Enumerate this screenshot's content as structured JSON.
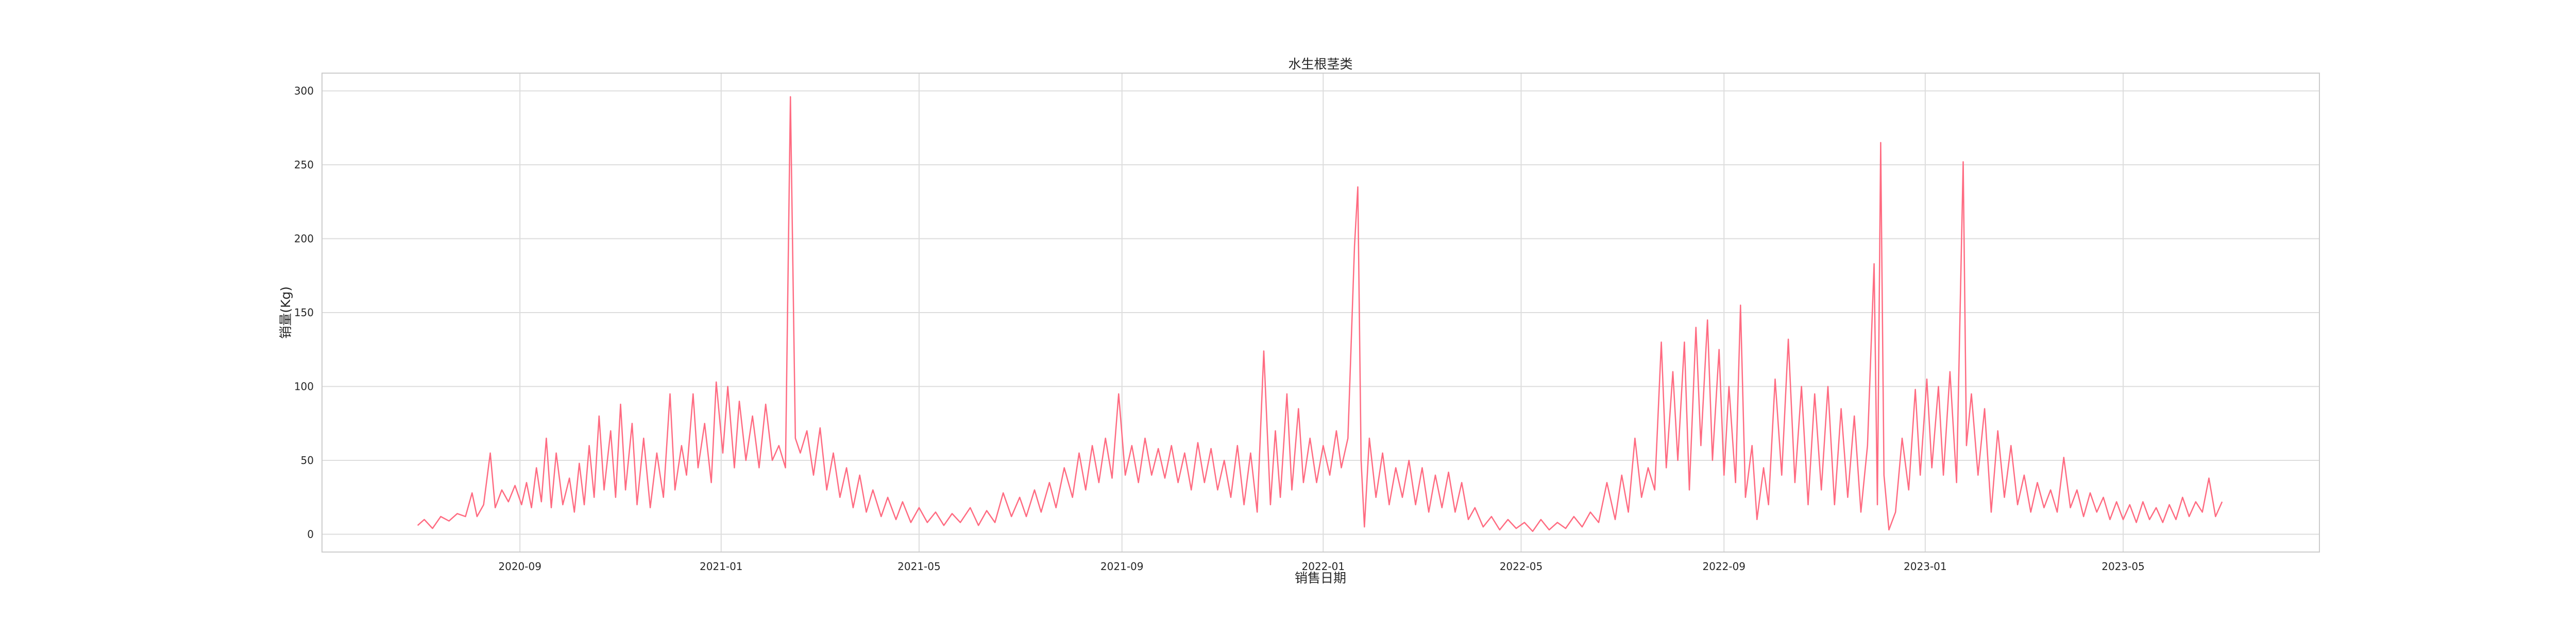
{
  "chart_data": {
    "type": "line",
    "title": "水生根茎类",
    "xlabel": "销售日期",
    "ylabel": "销量(Kg)",
    "xlim": [
      "2020-05-04",
      "2023-08-28"
    ],
    "ylim": [
      -12,
      312
    ],
    "grid": true,
    "legend": "none",
    "x_ticks": [
      "2020-09",
      "2021-01",
      "2021-05",
      "2021-09",
      "2022-01",
      "2022-05",
      "2022-09",
      "2023-01",
      "2023-05"
    ],
    "y_ticks": [
      0,
      50,
      100,
      150,
      200,
      250,
      300
    ],
    "series_color": "#ff6b81",
    "series": [
      {
        "points": [
          [
            "2020-07-01",
            6
          ],
          [
            "2020-07-05",
            10
          ],
          [
            "2020-07-10",
            4
          ],
          [
            "2020-07-15",
            12
          ],
          [
            "2020-07-20",
            9
          ],
          [
            "2020-07-25",
            14
          ],
          [
            "2020-07-30",
            12
          ],
          [
            "2020-08-03",
            28
          ],
          [
            "2020-08-06",
            12
          ],
          [
            "2020-08-10",
            20
          ],
          [
            "2020-08-14",
            55
          ],
          [
            "2020-08-17",
            18
          ],
          [
            "2020-08-21",
            30
          ],
          [
            "2020-08-25",
            22
          ],
          [
            "2020-08-29",
            33
          ],
          [
            "2020-09-02",
            20
          ],
          [
            "2020-09-05",
            35
          ],
          [
            "2020-09-08",
            18
          ],
          [
            "2020-09-11",
            45
          ],
          [
            "2020-09-14",
            22
          ],
          [
            "2020-09-17",
            65
          ],
          [
            "2020-09-20",
            18
          ],
          [
            "2020-09-23",
            55
          ],
          [
            "2020-09-27",
            20
          ],
          [
            "2020-10-01",
            38
          ],
          [
            "2020-10-04",
            15
          ],
          [
            "2020-10-07",
            48
          ],
          [
            "2020-10-10",
            20
          ],
          [
            "2020-10-13",
            60
          ],
          [
            "2020-10-16",
            25
          ],
          [
            "2020-10-19",
            80
          ],
          [
            "2020-10-22",
            30
          ],
          [
            "2020-10-26",
            70
          ],
          [
            "2020-10-29",
            25
          ],
          [
            "2020-11-01",
            88
          ],
          [
            "2020-11-04",
            30
          ],
          [
            "2020-11-08",
            75
          ],
          [
            "2020-11-11",
            20
          ],
          [
            "2020-11-15",
            65
          ],
          [
            "2020-11-19",
            18
          ],
          [
            "2020-11-23",
            55
          ],
          [
            "2020-11-27",
            25
          ],
          [
            "2020-12-01",
            95
          ],
          [
            "2020-12-04",
            30
          ],
          [
            "2020-12-08",
            60
          ],
          [
            "2020-12-11",
            40
          ],
          [
            "2020-12-15",
            95
          ],
          [
            "2020-12-18",
            45
          ],
          [
            "2020-12-22",
            75
          ],
          [
            "2020-12-26",
            35
          ],
          [
            "2020-12-29",
            103
          ],
          [
            "2021-01-02",
            55
          ],
          [
            "2021-01-05",
            100
          ],
          [
            "2021-01-09",
            45
          ],
          [
            "2021-01-12",
            90
          ],
          [
            "2021-01-16",
            50
          ],
          [
            "2021-01-20",
            80
          ],
          [
            "2021-01-24",
            45
          ],
          [
            "2021-01-28",
            88
          ],
          [
            "2021-02-01",
            50
          ],
          [
            "2021-02-05",
            60
          ],
          [
            "2021-02-09",
            45
          ],
          [
            "2021-02-12",
            296
          ],
          [
            "2021-02-15",
            65
          ],
          [
            "2021-02-18",
            55
          ],
          [
            "2021-02-22",
            70
          ],
          [
            "2021-02-26",
            40
          ],
          [
            "2021-03-02",
            72
          ],
          [
            "2021-03-06",
            30
          ],
          [
            "2021-03-10",
            55
          ],
          [
            "2021-03-14",
            25
          ],
          [
            "2021-03-18",
            45
          ],
          [
            "2021-03-22",
            18
          ],
          [
            "2021-03-26",
            40
          ],
          [
            "2021-03-30",
            15
          ],
          [
            "2021-04-03",
            30
          ],
          [
            "2021-04-08",
            12
          ],
          [
            "2021-04-12",
            25
          ],
          [
            "2021-04-17",
            10
          ],
          [
            "2021-04-21",
            22
          ],
          [
            "2021-04-26",
            8
          ],
          [
            "2021-05-01",
            18
          ],
          [
            "2021-05-06",
            8
          ],
          [
            "2021-05-11",
            15
          ],
          [
            "2021-05-16",
            6
          ],
          [
            "2021-05-21",
            14
          ],
          [
            "2021-05-26",
            8
          ],
          [
            "2021-06-01",
            18
          ],
          [
            "2021-06-06",
            6
          ],
          [
            "2021-06-11",
            16
          ],
          [
            "2021-06-16",
            8
          ],
          [
            "2021-06-21",
            28
          ],
          [
            "2021-06-26",
            12
          ],
          [
            "2021-07-01",
            25
          ],
          [
            "2021-07-05",
            12
          ],
          [
            "2021-07-10",
            30
          ],
          [
            "2021-07-14",
            15
          ],
          [
            "2021-07-19",
            35
          ],
          [
            "2021-07-23",
            18
          ],
          [
            "2021-07-28",
            45
          ],
          [
            "2021-08-02",
            25
          ],
          [
            "2021-08-06",
            55
          ],
          [
            "2021-08-10",
            30
          ],
          [
            "2021-08-14",
            60
          ],
          [
            "2021-08-18",
            35
          ],
          [
            "2021-08-22",
            65
          ],
          [
            "2021-08-26",
            38
          ],
          [
            "2021-08-30",
            95
          ],
          [
            "2021-09-03",
            40
          ],
          [
            "2021-09-07",
            60
          ],
          [
            "2021-09-11",
            35
          ],
          [
            "2021-09-15",
            65
          ],
          [
            "2021-09-19",
            40
          ],
          [
            "2021-09-23",
            58
          ],
          [
            "2021-09-27",
            38
          ],
          [
            "2021-10-01",
            60
          ],
          [
            "2021-10-05",
            35
          ],
          [
            "2021-10-09",
            55
          ],
          [
            "2021-10-13",
            30
          ],
          [
            "2021-10-17",
            62
          ],
          [
            "2021-10-21",
            35
          ],
          [
            "2021-10-25",
            58
          ],
          [
            "2021-10-29",
            30
          ],
          [
            "2021-11-02",
            50
          ],
          [
            "2021-11-06",
            25
          ],
          [
            "2021-11-10",
            60
          ],
          [
            "2021-11-14",
            20
          ],
          [
            "2021-11-18",
            55
          ],
          [
            "2021-11-22",
            15
          ],
          [
            "2021-11-26",
            124
          ],
          [
            "2021-11-30",
            20
          ],
          [
            "2021-12-03",
            70
          ],
          [
            "2021-12-06",
            25
          ],
          [
            "2021-12-10",
            95
          ],
          [
            "2021-12-13",
            30
          ],
          [
            "2021-12-17",
            85
          ],
          [
            "2021-12-20",
            35
          ],
          [
            "2021-12-24",
            65
          ],
          [
            "2021-12-28",
            35
          ],
          [
            "2022-01-01",
            60
          ],
          [
            "2022-01-05",
            40
          ],
          [
            "2022-01-09",
            70
          ],
          [
            "2022-01-12",
            45
          ],
          [
            "2022-01-16",
            65
          ],
          [
            "2022-01-20",
            195
          ],
          [
            "2022-01-22",
            235
          ],
          [
            "2022-01-24",
            50
          ],
          [
            "2022-01-26",
            5
          ],
          [
            "2022-01-29",
            65
          ],
          [
            "2022-02-02",
            25
          ],
          [
            "2022-02-06",
            55
          ],
          [
            "2022-02-10",
            20
          ],
          [
            "2022-02-14",
            45
          ],
          [
            "2022-02-18",
            25
          ],
          [
            "2022-02-22",
            50
          ],
          [
            "2022-02-26",
            20
          ],
          [
            "2022-03-02",
            45
          ],
          [
            "2022-03-06",
            15
          ],
          [
            "2022-03-10",
            40
          ],
          [
            "2022-03-14",
            18
          ],
          [
            "2022-03-18",
            42
          ],
          [
            "2022-03-22",
            15
          ],
          [
            "2022-03-26",
            35
          ],
          [
            "2022-03-30",
            10
          ],
          [
            "2022-04-03",
            18
          ],
          [
            "2022-04-08",
            5
          ],
          [
            "2022-04-13",
            12
          ],
          [
            "2022-04-18",
            3
          ],
          [
            "2022-04-23",
            10
          ],
          [
            "2022-04-28",
            4
          ],
          [
            "2022-05-03",
            8
          ],
          [
            "2022-05-08",
            2
          ],
          [
            "2022-05-13",
            10
          ],
          [
            "2022-05-18",
            3
          ],
          [
            "2022-05-23",
            8
          ],
          [
            "2022-05-28",
            4
          ],
          [
            "2022-06-02",
            12
          ],
          [
            "2022-06-07",
            5
          ],
          [
            "2022-06-12",
            15
          ],
          [
            "2022-06-17",
            8
          ],
          [
            "2022-06-22",
            35
          ],
          [
            "2022-06-27",
            10
          ],
          [
            "2022-07-01",
            40
          ],
          [
            "2022-07-05",
            15
          ],
          [
            "2022-07-09",
            65
          ],
          [
            "2022-07-13",
            25
          ],
          [
            "2022-07-17",
            45
          ],
          [
            "2022-07-21",
            30
          ],
          [
            "2022-07-25",
            130
          ],
          [
            "2022-07-28",
            45
          ],
          [
            "2022-08-01",
            110
          ],
          [
            "2022-08-04",
            50
          ],
          [
            "2022-08-08",
            130
          ],
          [
            "2022-08-11",
            30
          ],
          [
            "2022-08-15",
            140
          ],
          [
            "2022-08-18",
            60
          ],
          [
            "2022-08-22",
            145
          ],
          [
            "2022-08-25",
            50
          ],
          [
            "2022-08-29",
            125
          ],
          [
            "2022-09-01",
            40
          ],
          [
            "2022-09-04",
            100
          ],
          [
            "2022-09-08",
            35
          ],
          [
            "2022-09-11",
            155
          ],
          [
            "2022-09-14",
            25
          ],
          [
            "2022-09-18",
            60
          ],
          [
            "2022-09-21",
            10
          ],
          [
            "2022-09-25",
            45
          ],
          [
            "2022-09-28",
            20
          ],
          [
            "2022-10-02",
            105
          ],
          [
            "2022-10-06",
            40
          ],
          [
            "2022-10-10",
            132
          ],
          [
            "2022-10-14",
            35
          ],
          [
            "2022-10-18",
            100
          ],
          [
            "2022-10-22",
            20
          ],
          [
            "2022-10-26",
            95
          ],
          [
            "2022-10-30",
            30
          ],
          [
            "2022-11-03",
            100
          ],
          [
            "2022-11-07",
            20
          ],
          [
            "2022-11-11",
            85
          ],
          [
            "2022-11-15",
            25
          ],
          [
            "2022-11-19",
            80
          ],
          [
            "2022-11-23",
            15
          ],
          [
            "2022-11-27",
            60
          ],
          [
            "2022-12-01",
            183
          ],
          [
            "2022-12-03",
            20
          ],
          [
            "2022-12-05",
            265
          ],
          [
            "2022-12-07",
            40
          ],
          [
            "2022-12-10",
            3
          ],
          [
            "2022-12-14",
            15
          ],
          [
            "2022-12-18",
            65
          ],
          [
            "2022-12-22",
            30
          ],
          [
            "2022-12-26",
            98
          ],
          [
            "2022-12-29",
            40
          ],
          [
            "2023-01-02",
            105
          ],
          [
            "2023-01-05",
            45
          ],
          [
            "2023-01-09",
            100
          ],
          [
            "2023-01-12",
            40
          ],
          [
            "2023-01-16",
            110
          ],
          [
            "2023-01-20",
            35
          ],
          [
            "2023-01-24",
            252
          ],
          [
            "2023-01-26",
            60
          ],
          [
            "2023-01-29",
            95
          ],
          [
            "2023-02-02",
            40
          ],
          [
            "2023-02-06",
            85
          ],
          [
            "2023-02-10",
            15
          ],
          [
            "2023-02-14",
            70
          ],
          [
            "2023-02-18",
            25
          ],
          [
            "2023-02-22",
            60
          ],
          [
            "2023-02-26",
            20
          ],
          [
            "2023-03-02",
            40
          ],
          [
            "2023-03-06",
            15
          ],
          [
            "2023-03-10",
            35
          ],
          [
            "2023-03-14",
            18
          ],
          [
            "2023-03-18",
            30
          ],
          [
            "2023-03-22",
            15
          ],
          [
            "2023-03-26",
            52
          ],
          [
            "2023-03-30",
            18
          ],
          [
            "2023-04-03",
            30
          ],
          [
            "2023-04-07",
            12
          ],
          [
            "2023-04-11",
            28
          ],
          [
            "2023-04-15",
            15
          ],
          [
            "2023-04-19",
            25
          ],
          [
            "2023-04-23",
            10
          ],
          [
            "2023-04-27",
            22
          ],
          [
            "2023-05-01",
            10
          ],
          [
            "2023-05-05",
            20
          ],
          [
            "2023-05-09",
            8
          ],
          [
            "2023-05-13",
            22
          ],
          [
            "2023-05-17",
            10
          ],
          [
            "2023-05-21",
            18
          ],
          [
            "2023-05-25",
            8
          ],
          [
            "2023-05-29",
            20
          ],
          [
            "2023-06-02",
            10
          ],
          [
            "2023-06-06",
            25
          ],
          [
            "2023-06-10",
            12
          ],
          [
            "2023-06-14",
            22
          ],
          [
            "2023-06-18",
            15
          ],
          [
            "2023-06-22",
            38
          ],
          [
            "2023-06-26",
            12
          ],
          [
            "2023-06-30",
            22
          ]
        ]
      }
    ]
  }
}
